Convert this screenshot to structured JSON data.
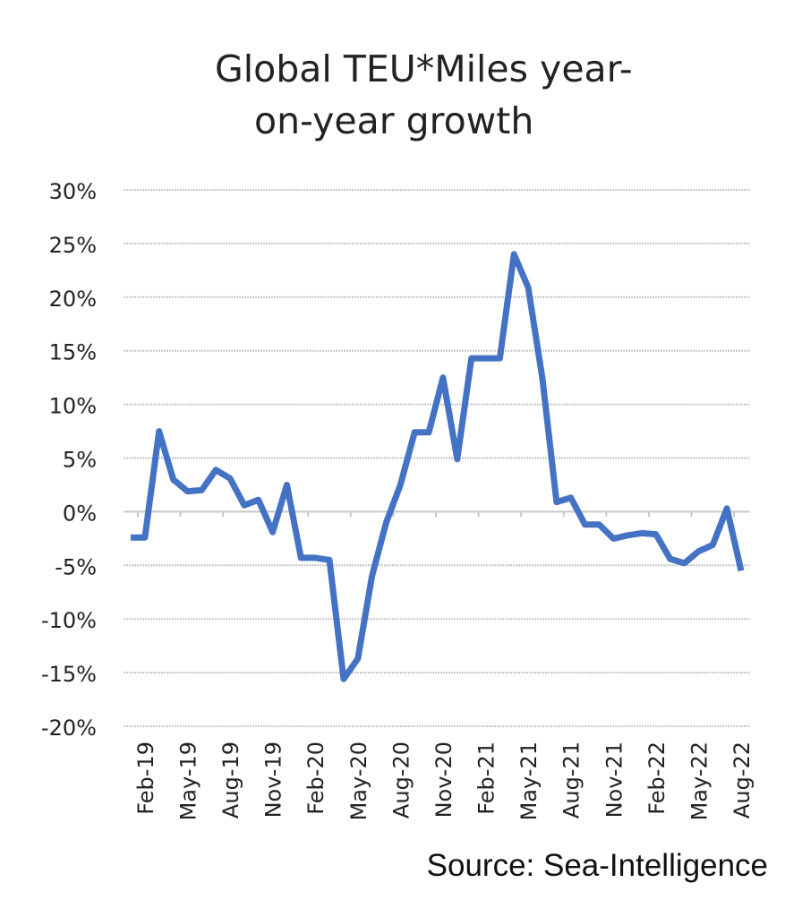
{
  "chart_data": {
    "type": "line",
    "title_lines": [
      "Global TEU*Miles year-",
      "on-year growth"
    ],
    "xlabel": "",
    "ylabel": "",
    "ylim": [
      -20,
      30
    ],
    "y_ticks": [
      "30%",
      "25%",
      "20%",
      "15%",
      "10%",
      "5%",
      "0%",
      "-5%",
      "-10%",
      "-15%",
      "-20%"
    ],
    "x_tick_labels": [
      "Feb-19",
      "May-19",
      "Aug-19",
      "Nov-19",
      "Feb-20",
      "May-20",
      "Aug-20",
      "Nov-20",
      "Feb-21",
      "May-21",
      "Aug-21",
      "Nov-21",
      "Feb-22",
      "May-22",
      "Aug-22"
    ],
    "grid": "horizontal",
    "legend": "none",
    "line_color": "#4472C4",
    "series": [
      {
        "x": [
          "Jan-19",
          "Feb-19",
          "Mar-19",
          "Apr-19",
          "May-19",
          "Jun-19",
          "Jul-19",
          "Aug-19",
          "Sep-19",
          "Oct-19",
          "Nov-19",
          "Dec-19",
          "Jan-20",
          "Feb-20",
          "Mar-20",
          "Apr-20",
          "May-20",
          "Jun-20",
          "Jul-20",
          "Aug-20",
          "Sep-20",
          "Oct-20",
          "Nov-20",
          "Dec-20",
          "Jan-21",
          "Feb-21",
          "Mar-21",
          "Apr-21",
          "May-21",
          "Jun-21",
          "Jul-21",
          "Aug-21",
          "Sep-21",
          "Oct-21",
          "Nov-21",
          "Dec-21",
          "Jan-22",
          "Feb-22",
          "Mar-22",
          "Apr-22",
          "May-22",
          "Jun-22",
          "Jul-22",
          "Aug-22"
        ],
        "values": [
          -2.4,
          -2.4,
          7.5,
          3.0,
          1.9,
          2.0,
          3.9,
          3.1,
          0.6,
          1.1,
          -1.9,
          2.5,
          -4.3,
          -4.3,
          -4.5,
          -15.6,
          -13.7,
          -6.0,
          -1.0,
          2.5,
          7.4,
          7.4,
          12.5,
          4.9,
          14.3,
          14.3,
          14.3,
          24.0,
          20.9,
          12.4,
          0.9,
          1.3,
          -1.2,
          -1.2,
          -2.5,
          -2.2,
          -2.0,
          -2.1,
          -4.4,
          -4.8,
          -3.7,
          -3.1,
          0.3,
          -5.5
        ]
      }
    ]
  },
  "footer": {
    "source": "Source: Sea-Intelligence"
  }
}
